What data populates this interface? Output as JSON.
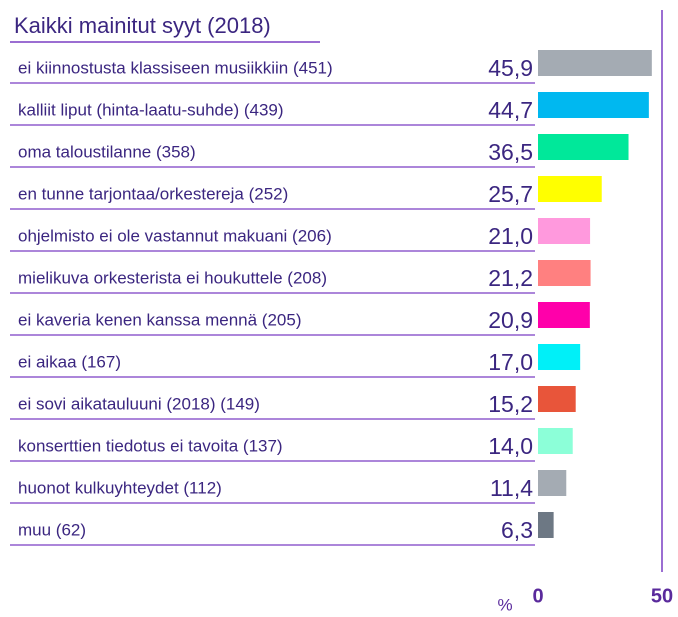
{
  "chart_data": {
    "type": "bar",
    "orientation": "horizontal",
    "title": "Kaikki mainitut syyt (2018)",
    "categories": [
      "ei kiinnostusta klassiseen musiikkiin (451)",
      "kalliit liput (hinta-laatu-suhde) (439)",
      "oma taloustilanne (358)",
      "en tunne tarjontaa/orkestereja (252)",
      "ohjelmisto ei ole vastannut makuani (206)",
      "mielikuva orkesterista ei houkuttele (208)",
      "ei kaveria kenen kanssa mennä (205)",
      "ei aikaa (167)",
      "ei sovi aikatauluuni (2018) (149)",
      "konserttien tiedotus ei tavoita (137)",
      "huonot kulkuyhteydet (112)",
      "muu (62)"
    ],
    "values": [
      45.9,
      44.7,
      36.5,
      25.7,
      21.0,
      21.2,
      20.9,
      17.0,
      15.2,
      14.0,
      11.4,
      6.3
    ],
    "value_labels": [
      "45,9",
      "44,7",
      "36,5",
      "25,7",
      "21,0",
      "21,2",
      "20,9",
      "17,0",
      "15,2",
      "14,0",
      "11,4",
      "6,3"
    ],
    "colors": [
      "#a4abb3",
      "#00b8f0",
      "#00e89a",
      "#ffff00",
      "#ff99dd",
      "#ff8080",
      "#ff00aa",
      "#00f0f8",
      "#e8553a",
      "#8cffd8",
      "#a4abb3",
      "#6d7884"
    ],
    "xlabel": "%",
    "xlim": [
      0,
      50
    ],
    "xticks": [
      0,
      50
    ]
  }
}
